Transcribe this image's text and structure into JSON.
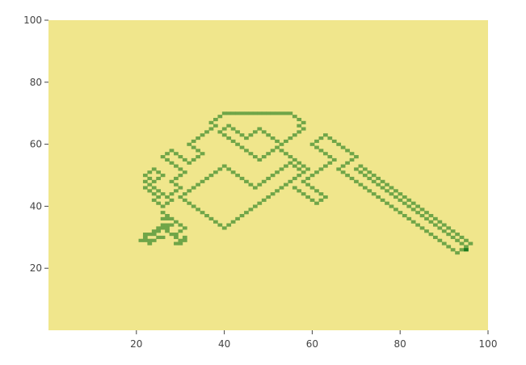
{
  "chart_data": {
    "type": "heatmap",
    "title": "",
    "xlabel": "",
    "ylabel": "",
    "xlim": [
      0,
      100
    ],
    "ylim": [
      0,
      100
    ],
    "x_ticks": [
      20,
      40,
      60,
      80,
      100
    ],
    "y_ticks": [
      20,
      40,
      60,
      80,
      100
    ],
    "grid": false,
    "legend": "none",
    "colors": {
      "background": "#F0E68C",
      "low": "#F0E68C",
      "mid": "#6FA548",
      "high": "#1E7B1E"
    },
    "value_scale": [
      0,
      1,
      2
    ],
    "cells": [
      [
        21,
        29,
        1
      ],
      [
        22,
        29,
        1
      ],
      [
        23,
        29,
        1
      ],
      [
        22,
        30,
        1
      ],
      [
        23,
        31,
        1
      ],
      [
        24,
        31,
        1
      ],
      [
        25,
        30,
        1
      ],
      [
        26,
        30,
        1
      ],
      [
        24,
        29,
        1
      ],
      [
        23,
        28,
        1
      ],
      [
        22,
        31,
        1
      ],
      [
        24,
        32,
        1
      ],
      [
        25,
        33,
        1
      ],
      [
        26,
        33,
        1
      ],
      [
        27,
        33,
        1
      ],
      [
        25,
        32,
        1
      ],
      [
        26,
        34,
        1
      ],
      [
        27,
        34,
        1
      ],
      [
        28,
        34,
        1
      ],
      [
        27,
        32,
        1
      ],
      [
        28,
        31,
        1
      ],
      [
        29,
        31,
        1
      ],
      [
        29,
        30,
        1
      ],
      [
        30,
        29,
        1
      ],
      [
        29,
        28,
        1
      ],
      [
        30,
        28,
        1
      ],
      [
        31,
        29,
        1
      ],
      [
        31,
        30,
        1
      ],
      [
        30,
        32,
        1
      ],
      [
        31,
        33,
        1
      ],
      [
        30,
        34,
        1
      ],
      [
        29,
        35,
        1
      ],
      [
        28,
        36,
        1
      ],
      [
        27,
        37,
        1
      ],
      [
        26,
        38,
        1
      ],
      [
        26,
        36,
        1
      ],
      [
        27,
        36,
        1
      ],
      [
        26,
        40,
        1
      ],
      [
        27,
        41,
        1
      ],
      [
        28,
        42,
        1
      ],
      [
        27,
        43,
        1
      ],
      [
        26,
        44,
        1
      ],
      [
        25,
        45,
        1
      ],
      [
        24,
        46,
        1
      ],
      [
        24,
        48,
        1
      ],
      [
        25,
        49,
        1
      ],
      [
        26,
        50,
        1
      ],
      [
        25,
        51,
        1
      ],
      [
        24,
        52,
        1
      ],
      [
        23,
        51,
        1
      ],
      [
        22,
        50,
        1
      ],
      [
        23,
        49,
        1
      ],
      [
        22,
        48,
        1
      ],
      [
        23,
        47,
        1
      ],
      [
        22,
        46,
        1
      ],
      [
        23,
        45,
        1
      ],
      [
        24,
        44,
        1
      ],
      [
        25,
        43,
        1
      ],
      [
        24,
        42,
        1
      ],
      [
        25,
        41,
        1
      ],
      [
        28,
        44,
        1
      ],
      [
        29,
        45,
        1
      ],
      [
        30,
        46,
        1
      ],
      [
        29,
        47,
        1
      ],
      [
        28,
        48,
        1
      ],
      [
        29,
        49,
        1
      ],
      [
        30,
        50,
        1
      ],
      [
        31,
        51,
        1
      ],
      [
        30,
        52,
        1
      ],
      [
        29,
        53,
        1
      ],
      [
        28,
        54,
        1
      ],
      [
        27,
        55,
        1
      ],
      [
        26,
        56,
        1
      ],
      [
        27,
        57,
        1
      ],
      [
        28,
        58,
        1
      ],
      [
        29,
        57,
        1
      ],
      [
        30,
        56,
        1
      ],
      [
        31,
        55,
        1
      ],
      [
        32,
        54,
        1
      ],
      [
        33,
        55,
        1
      ],
      [
        34,
        56,
        1
      ],
      [
        35,
        57,
        1
      ],
      [
        34,
        58,
        1
      ],
      [
        33,
        59,
        1
      ],
      [
        32,
        60,
        1
      ],
      [
        33,
        61,
        1
      ],
      [
        34,
        62,
        1
      ],
      [
        35,
        63,
        1
      ],
      [
        36,
        64,
        1
      ],
      [
        37,
        65,
        1
      ],
      [
        38,
        66,
        1
      ],
      [
        37,
        67,
        1
      ],
      [
        38,
        68,
        1
      ],
      [
        39,
        69,
        1
      ],
      [
        40,
        70,
        1
      ],
      [
        41,
        70,
        1
      ],
      [
        42,
        70,
        1
      ],
      [
        43,
        70,
        1
      ],
      [
        44,
        70,
        1
      ],
      [
        45,
        70,
        1
      ],
      [
        46,
        70,
        1
      ],
      [
        47,
        70,
        1
      ],
      [
        48,
        70,
        1
      ],
      [
        49,
        70,
        1
      ],
      [
        50,
        70,
        1
      ],
      [
        51,
        70,
        1
      ],
      [
        52,
        70,
        1
      ],
      [
        53,
        70,
        1
      ],
      [
        54,
        70,
        1
      ],
      [
        55,
        70,
        1
      ],
      [
        56,
        69,
        1
      ],
      [
        57,
        68,
        1
      ],
      [
        58,
        67,
        1
      ],
      [
        57,
        66,
        1
      ],
      [
        58,
        65,
        1
      ],
      [
        57,
        64,
        1
      ],
      [
        56,
        63,
        1
      ],
      [
        55,
        62,
        1
      ],
      [
        54,
        61,
        1
      ],
      [
        53,
        60,
        1
      ],
      [
        52,
        61,
        1
      ],
      [
        51,
        62,
        1
      ],
      [
        50,
        63,
        1
      ],
      [
        49,
        64,
        1
      ],
      [
        48,
        65,
        1
      ],
      [
        47,
        64,
        1
      ],
      [
        46,
        63,
        1
      ],
      [
        45,
        62,
        1
      ],
      [
        44,
        63,
        1
      ],
      [
        43,
        64,
        1
      ],
      [
        42,
        65,
        1
      ],
      [
        41,
        66,
        1
      ],
      [
        40,
        65,
        1
      ],
      [
        39,
        64,
        1
      ],
      [
        40,
        63,
        1
      ],
      [
        41,
        62,
        1
      ],
      [
        42,
        61,
        1
      ],
      [
        43,
        60,
        1
      ],
      [
        44,
        59,
        1
      ],
      [
        45,
        58,
        1
      ],
      [
        46,
        57,
        1
      ],
      [
        47,
        56,
        1
      ],
      [
        48,
        55,
        1
      ],
      [
        49,
        56,
        1
      ],
      [
        50,
        57,
        1
      ],
      [
        51,
        58,
        1
      ],
      [
        52,
        59,
        1
      ],
      [
        53,
        58,
        1
      ],
      [
        54,
        57,
        1
      ],
      [
        55,
        56,
        1
      ],
      [
        56,
        55,
        1
      ],
      [
        57,
        54,
        1
      ],
      [
        58,
        53,
        1
      ],
      [
        59,
        52,
        1
      ],
      [
        58,
        51,
        1
      ],
      [
        57,
        50,
        1
      ],
      [
        56,
        49,
        1
      ],
      [
        55,
        48,
        1
      ],
      [
        54,
        47,
        1
      ],
      [
        53,
        46,
        1
      ],
      [
        52,
        45,
        1
      ],
      [
        51,
        44,
        1
      ],
      [
        50,
        43,
        1
      ],
      [
        49,
        42,
        1
      ],
      [
        48,
        41,
        1
      ],
      [
        47,
        40,
        1
      ],
      [
        46,
        39,
        1
      ],
      [
        45,
        38,
        1
      ],
      [
        44,
        37,
        1
      ],
      [
        43,
        36,
        1
      ],
      [
        42,
        35,
        1
      ],
      [
        41,
        34,
        1
      ],
      [
        40,
        33,
        1
      ],
      [
        39,
        34,
        1
      ],
      [
        38,
        35,
        1
      ],
      [
        37,
        36,
        1
      ],
      [
        36,
        37,
        1
      ],
      [
        35,
        38,
        1
      ],
      [
        34,
        39,
        1
      ],
      [
        33,
        40,
        1
      ],
      [
        32,
        41,
        1
      ],
      [
        31,
        42,
        1
      ],
      [
        30,
        43,
        1
      ],
      [
        31,
        44,
        1
      ],
      [
        32,
        45,
        1
      ],
      [
        33,
        46,
        1
      ],
      [
        34,
        47,
        1
      ],
      [
        35,
        48,
        1
      ],
      [
        36,
        49,
        1
      ],
      [
        37,
        50,
        1
      ],
      [
        38,
        51,
        1
      ],
      [
        39,
        52,
        1
      ],
      [
        40,
        53,
        1
      ],
      [
        41,
        52,
        1
      ],
      [
        42,
        51,
        1
      ],
      [
        43,
        50,
        1
      ],
      [
        44,
        49,
        1
      ],
      [
        45,
        48,
        1
      ],
      [
        46,
        47,
        1
      ],
      [
        47,
        46,
        1
      ],
      [
        48,
        47,
        1
      ],
      [
        49,
        48,
        1
      ],
      [
        50,
        49,
        1
      ],
      [
        51,
        50,
        1
      ],
      [
        52,
        51,
        1
      ],
      [
        53,
        52,
        1
      ],
      [
        54,
        53,
        1
      ],
      [
        55,
        54,
        1
      ],
      [
        56,
        53,
        1
      ],
      [
        57,
        52,
        1
      ],
      [
        56,
        46,
        1
      ],
      [
        57,
        45,
        1
      ],
      [
        58,
        44,
        1
      ],
      [
        59,
        43,
        1
      ],
      [
        60,
        42,
        1
      ],
      [
        61,
        41,
        1
      ],
      [
        62,
        42,
        1
      ],
      [
        63,
        43,
        1
      ],
      [
        62,
        44,
        1
      ],
      [
        61,
        45,
        1
      ],
      [
        60,
        46,
        1
      ],
      [
        59,
        47,
        1
      ],
      [
        58,
        48,
        1
      ],
      [
        59,
        49,
        1
      ],
      [
        60,
        50,
        1
      ],
      [
        61,
        51,
        1
      ],
      [
        62,
        52,
        1
      ],
      [
        63,
        53,
        1
      ],
      [
        64,
        54,
        1
      ],
      [
        65,
        55,
        1
      ],
      [
        64,
        56,
        1
      ],
      [
        63,
        57,
        1
      ],
      [
        62,
        58,
        1
      ],
      [
        61,
        59,
        1
      ],
      [
        60,
        60,
        1
      ],
      [
        61,
        61,
        1
      ],
      [
        62,
        62,
        1
      ],
      [
        63,
        63,
        1
      ],
      [
        64,
        62,
        1
      ],
      [
        65,
        61,
        1
      ],
      [
        66,
        60,
        1
      ],
      [
        67,
        59,
        1
      ],
      [
        68,
        58,
        1
      ],
      [
        69,
        57,
        1
      ],
      [
        70,
        56,
        1
      ],
      [
        69,
        55,
        1
      ],
      [
        68,
        54,
        1
      ],
      [
        67,
        53,
        1
      ],
      [
        66,
        52,
        1
      ],
      [
        67,
        51,
        1
      ],
      [
        68,
        50,
        1
      ],
      [
        69,
        49,
        1
      ],
      [
        70,
        48,
        1
      ],
      [
        71,
        47,
        1
      ],
      [
        72,
        46,
        1
      ],
      [
        73,
        45,
        1
      ],
      [
        74,
        44,
        1
      ],
      [
        75,
        43,
        1
      ],
      [
        76,
        42,
        1
      ],
      [
        77,
        41,
        1
      ],
      [
        78,
        40,
        1
      ],
      [
        79,
        39,
        1
      ],
      [
        80,
        38,
        1
      ],
      [
        81,
        37,
        1
      ],
      [
        82,
        36,
        1
      ],
      [
        83,
        35,
        1
      ],
      [
        84,
        34,
        1
      ],
      [
        85,
        33,
        1
      ],
      [
        86,
        32,
        1
      ],
      [
        87,
        31,
        1
      ],
      [
        88,
        30,
        1
      ],
      [
        89,
        29,
        1
      ],
      [
        90,
        28,
        1
      ],
      [
        91,
        27,
        1
      ],
      [
        92,
        26,
        1
      ],
      [
        93,
        25,
        1
      ],
      [
        94,
        26,
        1
      ],
      [
        95,
        27,
        1
      ],
      [
        96,
        28,
        1
      ],
      [
        95,
        29,
        1
      ],
      [
        94,
        30,
        1
      ],
      [
        93,
        31,
        1
      ],
      [
        92,
        32,
        1
      ],
      [
        91,
        33,
        1
      ],
      [
        90,
        34,
        1
      ],
      [
        89,
        35,
        1
      ],
      [
        88,
        36,
        1
      ],
      [
        87,
        37,
        1
      ],
      [
        86,
        38,
        1
      ],
      [
        85,
        39,
        1
      ],
      [
        84,
        40,
        1
      ],
      [
        83,
        41,
        1
      ],
      [
        82,
        42,
        1
      ],
      [
        81,
        43,
        1
      ],
      [
        80,
        44,
        1
      ],
      [
        79,
        45,
        1
      ],
      [
        78,
        46,
        1
      ],
      [
        77,
        47,
        1
      ],
      [
        76,
        48,
        1
      ],
      [
        75,
        49,
        1
      ],
      [
        74,
        50,
        1
      ],
      [
        73,
        51,
        1
      ],
      [
        72,
        52,
        1
      ],
      [
        71,
        53,
        1
      ],
      [
        70,
        52,
        1
      ],
      [
        71,
        51,
        1
      ],
      [
        72,
        50,
        1
      ],
      [
        73,
        49,
        1
      ],
      [
        74,
        48,
        1
      ],
      [
        75,
        47,
        1
      ],
      [
        76,
        46,
        1
      ],
      [
        77,
        45,
        1
      ],
      [
        78,
        44,
        1
      ],
      [
        79,
        43,
        1
      ],
      [
        80,
        42,
        1
      ],
      [
        81,
        41,
        1
      ],
      [
        82,
        40,
        1
      ],
      [
        83,
        39,
        1
      ],
      [
        84,
        38,
        1
      ],
      [
        85,
        37,
        1
      ],
      [
        86,
        36,
        1
      ],
      [
        87,
        35,
        1
      ],
      [
        88,
        34,
        1
      ],
      [
        89,
        33,
        1
      ],
      [
        90,
        32,
        1
      ],
      [
        91,
        31,
        1
      ],
      [
        92,
        30,
        1
      ],
      [
        93,
        29,
        1
      ],
      [
        94,
        28,
        1
      ],
      [
        95,
        26,
        2
      ]
    ]
  }
}
